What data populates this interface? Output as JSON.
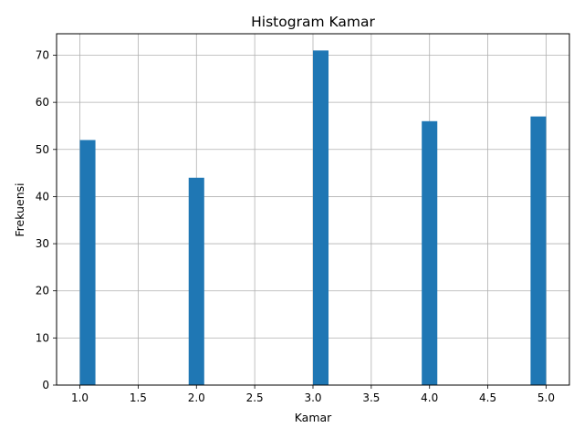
{
  "chart_data": {
    "type": "bar",
    "title": "Histogram Kamar",
    "xlabel": "Kamar",
    "ylabel": "Frekuensi",
    "bins": [
      {
        "start": 1.0,
        "end": 1.1333,
        "count": 52
      },
      {
        "start": 1.9333,
        "end": 2.0667,
        "count": 44
      },
      {
        "start": 3.0,
        "end": 3.1333,
        "count": 71
      },
      {
        "start": 3.9333,
        "end": 4.0667,
        "count": 56
      },
      {
        "start": 4.8667,
        "end": 5.0,
        "count": 57
      }
    ],
    "xlim": [
      0.8,
      5.2
    ],
    "ylim": [
      0,
      74.55
    ],
    "xticks": [
      1.0,
      1.5,
      2.0,
      2.5,
      3.0,
      3.5,
      4.0,
      4.5,
      5.0
    ],
    "xtick_labels": [
      "1.0",
      "1.5",
      "2.0",
      "2.5",
      "3.0",
      "3.5",
      "4.0",
      "4.5",
      "5.0"
    ],
    "yticks": [
      0,
      10,
      20,
      30,
      40,
      50,
      60,
      70
    ],
    "ytick_labels": [
      "0",
      "10",
      "20",
      "30",
      "40",
      "50",
      "60",
      "70"
    ],
    "grid": true,
    "bar_color": "#1f77b4",
    "grid_color": "#b0b0b0"
  }
}
